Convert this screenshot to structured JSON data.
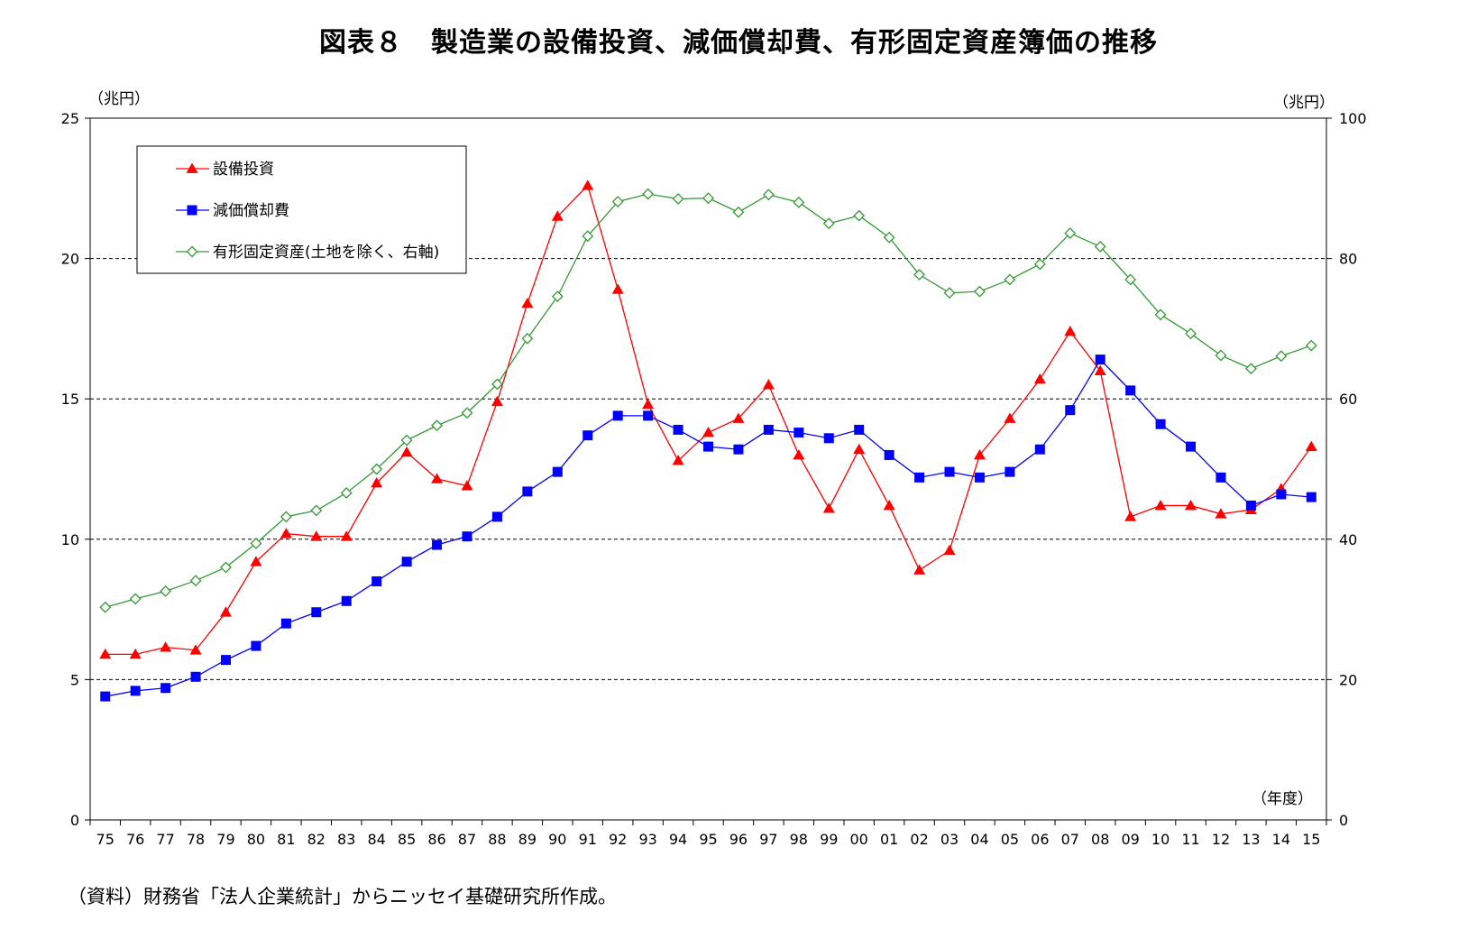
{
  "title": "図表８　製造業の設備投資、減価償却費、有形固定資産簿価の推移",
  "source": "（資料）財務省「法人企業統計」からニッセイ基礎研究所作成。",
  "chart_data": {
    "type": "line",
    "left_unit": "（兆円）",
    "right_unit": "（兆円）",
    "x_unit": "（年度）",
    "categories": [
      "75",
      "76",
      "77",
      "78",
      "79",
      "80",
      "81",
      "82",
      "83",
      "84",
      "85",
      "86",
      "87",
      "88",
      "89",
      "90",
      "91",
      "92",
      "93",
      "94",
      "95",
      "96",
      "97",
      "98",
      "99",
      "00",
      "01",
      "02",
      "03",
      "04",
      "05",
      "06",
      "07",
      "08",
      "09",
      "10",
      "11",
      "12",
      "13",
      "14",
      "15"
    ],
    "ylim_left": [
      0,
      25
    ],
    "yticks_left": [
      0,
      5,
      10,
      15,
      20,
      25
    ],
    "ylim_right": [
      0,
      100
    ],
    "yticks_right": [
      0,
      20,
      40,
      60,
      80,
      100
    ],
    "grid": "horizontal dashed at major ticks",
    "legend_position": "top-left",
    "series": [
      {
        "name": "設備投資",
        "axis": "left",
        "color": "#ff0000",
        "marker": "triangle",
        "values": [
          5.9,
          5.9,
          6.15,
          6.05,
          7.4,
          9.2,
          10.2,
          10.1,
          10.1,
          12.0,
          13.1,
          12.15,
          11.9,
          14.9,
          18.4,
          21.5,
          22.6,
          18.9,
          14.8,
          12.8,
          13.8,
          14.3,
          15.5,
          13.0,
          11.1,
          13.2,
          11.2,
          8.9,
          9.6,
          13.0,
          14.3,
          15.7,
          17.4,
          16.0,
          10.8,
          11.2,
          11.2,
          10.9,
          11.05,
          11.8,
          13.3
        ]
      },
      {
        "name": "減価償却費",
        "axis": "left",
        "color": "#0000ff",
        "marker": "square",
        "values": [
          4.4,
          4.6,
          4.7,
          5.1,
          5.7,
          6.2,
          7.0,
          7.4,
          7.8,
          8.5,
          9.2,
          9.8,
          10.1,
          10.8,
          11.7,
          12.4,
          13.7,
          14.4,
          14.4,
          13.9,
          13.3,
          13.2,
          13.9,
          13.8,
          13.6,
          13.9,
          13.0,
          12.2,
          12.4,
          12.2,
          12.4,
          13.2,
          14.6,
          16.4,
          15.3,
          14.1,
          13.3,
          12.2,
          11.2,
          11.6,
          11.5
        ]
      },
      {
        "name": "有形固定資産(土地を除く、右軸)",
        "axis": "right",
        "color": "#339933",
        "marker": "diamond",
        "values": [
          30.3,
          31.5,
          32.6,
          34.1,
          36.0,
          39.4,
          43.2,
          44.1,
          46.6,
          50.0,
          54.1,
          56.2,
          58.0,
          62.1,
          68.6,
          74.6,
          83.2,
          88.1,
          89.2,
          88.5,
          88.6,
          86.6,
          89.1,
          88.0,
          85.0,
          86.1,
          83.0,
          77.7,
          75.1,
          75.3,
          77.0,
          79.2,
          83.6,
          81.7,
          77.0,
          72.0,
          69.3,
          66.2,
          64.3,
          66.1,
          67.6
        ]
      }
    ]
  }
}
